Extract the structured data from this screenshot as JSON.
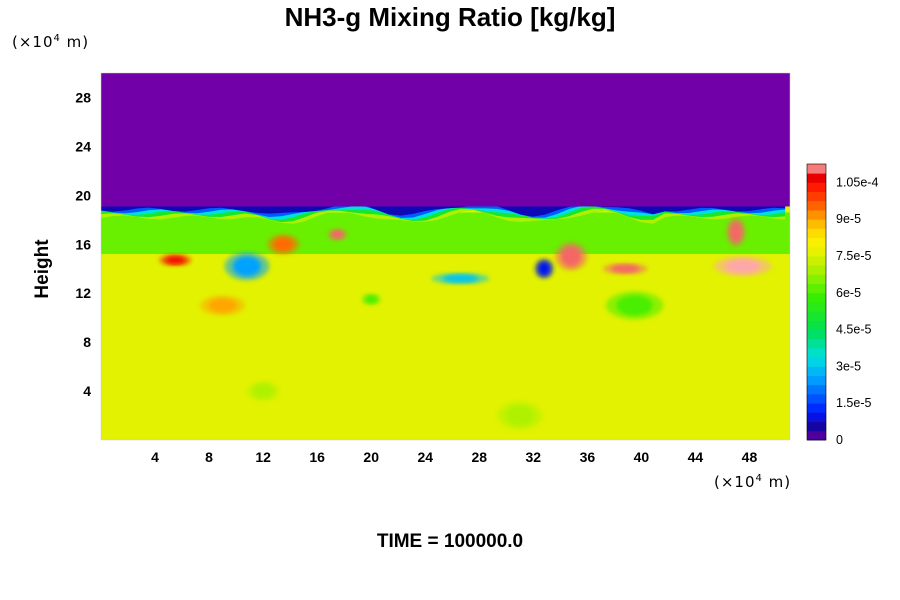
{
  "chart_data": {
    "type": "heatmap",
    "title": "NH3-g Mixing Ratio [kg/kg]",
    "ylabel": "Height",
    "x_unit": "×10",
    "x_unit_exp": "4",
    "x_unit_tail": "m",
    "y_unit": "×10",
    "y_unit_exp": "4",
    "y_unit_tail": "m",
    "x_ticks": [
      4,
      8,
      12,
      16,
      20,
      24,
      28,
      32,
      36,
      40,
      44,
      48
    ],
    "y_ticks": [
      4,
      8,
      12,
      16,
      20,
      24,
      28
    ],
    "xlim": [
      0,
      51
    ],
    "ylim": [
      0,
      30
    ],
    "colorbar": {
      "labels": [
        "0",
        "1.5e-5",
        "3e-5",
        "4.5e-5",
        "6e-5",
        "7.5e-5",
        "9e-5",
        "1.05e-4"
      ],
      "label_values": [
        0,
        1.5e-05,
        3e-05,
        4.5e-05,
        6e-05,
        7.5e-05,
        9e-05,
        0.000105
      ],
      "vmax": 0.0001125
    },
    "field": {
      "background_value": 7.6e-05,
      "top_layer_value": 0,
      "tropopause_height": 18.6,
      "band_bottom": 15.2,
      "band_value": 6.3e-05,
      "features": [
        {
          "x": 17.5,
          "y": 16.8,
          "value": 0.00011
        },
        {
          "x": 13.5,
          "y": 16.0,
          "value": 9.5e-05
        },
        {
          "x": 10.8,
          "y": 14.2,
          "value": 2.5e-05
        },
        {
          "x": 26.6,
          "y": 13.2,
          "value": 3e-05
        },
        {
          "x": 32.8,
          "y": 14.0,
          "value": 1e-05
        },
        {
          "x": 34.8,
          "y": 15.0,
          "value": 0.00011
        },
        {
          "x": 38.8,
          "y": 14.0,
          "value": 0.00011
        },
        {
          "x": 47.5,
          "y": 14.2,
          "value": 0.000112
        },
        {
          "x": 47.0,
          "y": 17.0,
          "value": 0.00011
        },
        {
          "x": 5.5,
          "y": 14.7,
          "value": 0.000105
        },
        {
          "x": 9.0,
          "y": 11.0,
          "value": 9e-05
        },
        {
          "x": 39.5,
          "y": 11.0,
          "value": 6e-05
        },
        {
          "x": 20.0,
          "y": 11.5,
          "value": 6e-05
        },
        {
          "x": 12.0,
          "y": 4.0,
          "value": 7e-05
        },
        {
          "x": 31.0,
          "y": 2.0,
          "value": 7e-05
        }
      ]
    }
  },
  "footer": {
    "time_label": "TIME = 100000.0"
  },
  "colors": {
    "background": "#ffffff",
    "plot_background": "#dff200",
    "top_layer": "#7200a8"
  }
}
